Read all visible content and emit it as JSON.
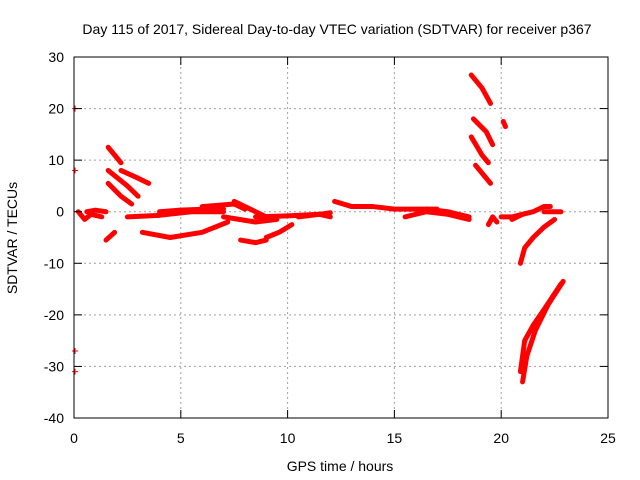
{
  "chart_data": {
    "type": "scatter",
    "title": "Day 115 of 2017, Sidereal Day-to-day VTEC variation (SDTVAR) for receiver p367",
    "xlabel": "GPS time / hours",
    "ylabel": "SDTVAR / TECUs",
    "xlim": [
      0,
      25
    ],
    "ylim": [
      -40,
      30
    ],
    "xticks": [
      0,
      5,
      10,
      15,
      20,
      25
    ],
    "yticks": [
      -40,
      -30,
      -20,
      -10,
      0,
      10,
      20,
      30
    ],
    "xtick_labels": [
      "0",
      "5",
      "10",
      "15",
      "20",
      "25"
    ],
    "ytick_labels": [
      "-40",
      "-30",
      "-20",
      "-10",
      "0",
      "10",
      "20",
      "30"
    ],
    "grid": true,
    "marker": "+",
    "color": "#ff0000",
    "tracks": [
      {
        "points": [
          [
            0.2,
            0
          ],
          [
            0.5,
            -1.5
          ],
          [
            0.8,
            -0.5
          ],
          [
            1.3,
            -1
          ]
        ]
      },
      {
        "points": [
          [
            0.6,
            0
          ],
          [
            1.0,
            0.3
          ],
          [
            1.5,
            0
          ]
        ]
      },
      {
        "points": [
          [
            1.5,
            -5.5
          ],
          [
            1.9,
            -4
          ]
        ]
      },
      {
        "points": [
          [
            1.6,
            12.5
          ],
          [
            2.2,
            9.5
          ]
        ]
      },
      {
        "points": [
          [
            1.6,
            8
          ],
          [
            2.5,
            5
          ],
          [
            3.0,
            3
          ]
        ]
      },
      {
        "points": [
          [
            1.6,
            5.5
          ],
          [
            2.2,
            3
          ],
          [
            2.7,
            1.5
          ]
        ]
      },
      {
        "points": [
          [
            2.2,
            8
          ],
          [
            3.0,
            6.5
          ],
          [
            3.5,
            5.5
          ]
        ]
      },
      {
        "points": [
          [
            2.5,
            -1
          ],
          [
            4.0,
            -0.7
          ],
          [
            5.5,
            0
          ],
          [
            7.0,
            0
          ]
        ]
      },
      {
        "points": [
          [
            3.2,
            -4
          ],
          [
            4.5,
            -5
          ],
          [
            6.0,
            -4
          ],
          [
            7.2,
            -2
          ]
        ]
      },
      {
        "points": [
          [
            4.0,
            0
          ],
          [
            5.0,
            0.3
          ],
          [
            6.2,
            0.5
          ],
          [
            7.0,
            0.5
          ]
        ]
      },
      {
        "points": [
          [
            6.0,
            1
          ],
          [
            7.5,
            1.5
          ],
          [
            8.0,
            0.5
          ]
        ]
      },
      {
        "points": [
          [
            7.0,
            -1
          ],
          [
            8.5,
            -2
          ],
          [
            9.5,
            -1.5
          ]
        ]
      },
      {
        "points": [
          [
            7.5,
            2
          ],
          [
            8.0,
            1
          ],
          [
            8.5,
            0
          ],
          [
            9.0,
            -1
          ]
        ]
      },
      {
        "points": [
          [
            7.8,
            -5.5
          ],
          [
            8.5,
            -6
          ],
          [
            9.0,
            -5.5
          ]
        ]
      },
      {
        "points": [
          [
            9.0,
            -5
          ],
          [
            9.6,
            -4
          ],
          [
            10.2,
            -2.5
          ]
        ]
      },
      {
        "points": [
          [
            8.5,
            -1
          ],
          [
            10.0,
            -0.8
          ],
          [
            11.5,
            -0.5
          ],
          [
            12.0,
            -1
          ]
        ]
      },
      {
        "points": [
          [
            10.5,
            -1
          ],
          [
            11.5,
            -0.5
          ],
          [
            12.0,
            -0.2
          ]
        ]
      },
      {
        "points": [
          [
            12.2,
            2
          ],
          [
            13.0,
            1
          ],
          [
            14.0,
            1
          ],
          [
            15.0,
            0.5
          ],
          [
            16.0,
            0.5
          ],
          [
            17.0,
            0.5
          ]
        ]
      },
      {
        "points": [
          [
            15.5,
            -1
          ],
          [
            16.5,
            0
          ],
          [
            17.5,
            -0.5
          ],
          [
            18.5,
            -1.5
          ]
        ]
      },
      {
        "points": [
          [
            16.5,
            0.5
          ],
          [
            17.5,
            0
          ],
          [
            18.5,
            -1
          ]
        ]
      },
      {
        "points": [
          [
            18.6,
            26.5
          ],
          [
            19.1,
            24
          ],
          [
            19.5,
            21
          ]
        ]
      },
      {
        "points": [
          [
            18.7,
            18
          ],
          [
            19.3,
            15.5
          ],
          [
            19.6,
            13
          ]
        ]
      },
      {
        "points": [
          [
            18.6,
            14.5
          ],
          [
            19.1,
            11
          ],
          [
            19.4,
            9.5
          ]
        ]
      },
      {
        "points": [
          [
            18.8,
            9
          ],
          [
            19.2,
            7
          ],
          [
            19.5,
            5.5
          ]
        ]
      },
      {
        "points": [
          [
            20.1,
            17.5
          ],
          [
            20.2,
            16.5
          ]
        ]
      },
      {
        "points": [
          [
            19.4,
            -2.5
          ],
          [
            19.6,
            -1
          ],
          [
            19.8,
            -2
          ]
        ]
      },
      {
        "points": [
          [
            20.0,
            -1
          ],
          [
            20.5,
            -1
          ],
          [
            21.0,
            -0.5
          ]
        ]
      },
      {
        "points": [
          [
            20.5,
            -1.5
          ],
          [
            21.0,
            -0.5
          ],
          [
            21.5,
            0
          ],
          [
            22.0,
            1
          ],
          [
            22.3,
            1
          ]
        ]
      },
      {
        "points": [
          [
            22.0,
            0
          ],
          [
            22.5,
            0
          ],
          [
            22.8,
            0
          ]
        ]
      },
      {
        "points": [
          [
            20.9,
            -10
          ],
          [
            21.1,
            -7
          ],
          [
            21.5,
            -5
          ],
          [
            22.0,
            -3
          ],
          [
            22.5,
            -1.5
          ]
        ]
      },
      {
        "points": [
          [
            21.0,
            -33
          ],
          [
            21.2,
            -28
          ],
          [
            21.6,
            -23
          ],
          [
            22.2,
            -18
          ],
          [
            22.9,
            -13.5
          ]
        ]
      },
      {
        "points": [
          [
            20.9,
            -31
          ],
          [
            21.1,
            -25
          ],
          [
            21.5,
            -22
          ],
          [
            22.0,
            -19
          ],
          [
            22.8,
            -14
          ]
        ]
      }
    ],
    "isolated_points": [
      [
        0.05,
        20
      ],
      [
        0.05,
        8
      ],
      [
        0.05,
        -27
      ],
      [
        0.05,
        -31
      ]
    ]
  }
}
